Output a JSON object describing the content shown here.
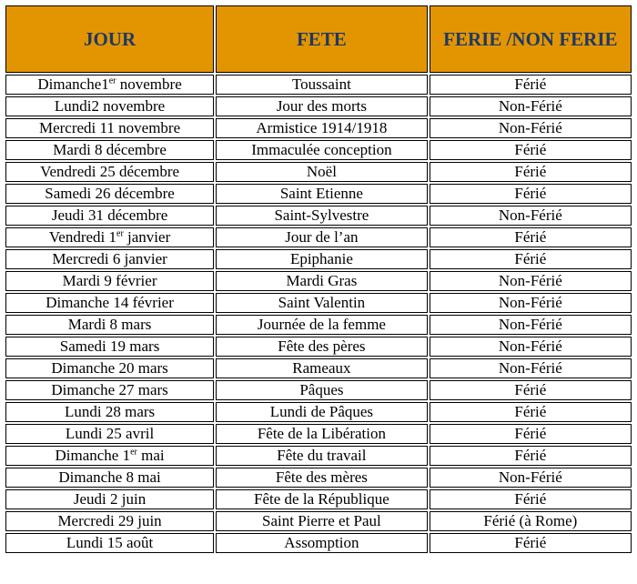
{
  "colors": {
    "header_bg": "#E29500",
    "header_text": "#1F3864",
    "body_text": "#000000",
    "border": "#000000",
    "page_bg": "#FFFFFF"
  },
  "table": {
    "headers": [
      {
        "key": "jour",
        "label": "JOUR"
      },
      {
        "key": "fete",
        "label": "FETE"
      },
      {
        "key": "ferie",
        "label": "FERIE /NON FERIE"
      }
    ],
    "rows": [
      {
        "jour": {
          "pre": "Dimanche1",
          "sup": "er",
          "post": " novembre"
        },
        "fete": "Toussaint",
        "ferie": "Férié"
      },
      {
        "jour": "Lundi2 novembre",
        "fete": "Jour des morts",
        "ferie": "Non-Férié"
      },
      {
        "jour": "Mercredi 11 novembre",
        "fete": "Armistice 1914/1918",
        "ferie": "Non-Férié"
      },
      {
        "jour": "Mardi 8 décembre",
        "fete": "Immaculée conception",
        "ferie": "Férié"
      },
      {
        "jour": "Vendredi 25 décembre",
        "fete": "Noël",
        "ferie": "Férié"
      },
      {
        "jour": "Samedi 26 décembre",
        "fete": "Saint Etienne",
        "ferie": "Férié"
      },
      {
        "jour": "Jeudi 31 décembre",
        "fete": "Saint-Sylvestre",
        "ferie": "Non-Férié"
      },
      {
        "jour": {
          "pre": "Vendredi 1",
          "sup": "er",
          "post": " janvier"
        },
        "fete": "Jour de l’an",
        "ferie": "Férié"
      },
      {
        "jour": "Mercredi 6 janvier",
        "fete": "Epiphanie",
        "ferie": "Férié"
      },
      {
        "jour": "Mardi 9 février",
        "fete": "Mardi Gras",
        "ferie": "Non-Férié"
      },
      {
        "jour": "Dimanche 14 février",
        "fete": "Saint Valentin",
        "ferie": "Non-Férié"
      },
      {
        "jour": "Mardi 8 mars",
        "fete": "Journée de la femme",
        "ferie": "Non-Férié"
      },
      {
        "jour": "Samedi 19 mars",
        "fete": "Fête des pères",
        "ferie": "Non-Férié"
      },
      {
        "jour": "Dimanche 20 mars",
        "fete": "Rameaux",
        "ferie": "Non-Férié"
      },
      {
        "jour": "Dimanche 27 mars",
        "fete": "Pâques",
        "ferie": "Férié"
      },
      {
        "jour": "Lundi 28 mars",
        "fete": "Lundi de Pâques",
        "ferie": "Férié"
      },
      {
        "jour": "Lundi 25 avril",
        "fete": "Fête de la Libération",
        "ferie": "Férié"
      },
      {
        "jour": {
          "pre": "Dimanche 1",
          "sup": "er",
          "post": " mai"
        },
        "fete": "Fête du travail",
        "ferie": "Férié"
      },
      {
        "jour": "Dimanche 8 mai",
        "fete": "Fête des mères",
        "ferie": "Non-Férié"
      },
      {
        "jour": "Jeudi 2 juin",
        "fete": "Fête de la République",
        "ferie": "Férié"
      },
      {
        "jour": "Mercredi 29 juin",
        "fete": "Saint Pierre et Paul",
        "ferie": "Férié (à Rome)"
      },
      {
        "jour": "Lundi 15 août",
        "fete": "Assomption",
        "ferie": "Férié"
      }
    ]
  }
}
